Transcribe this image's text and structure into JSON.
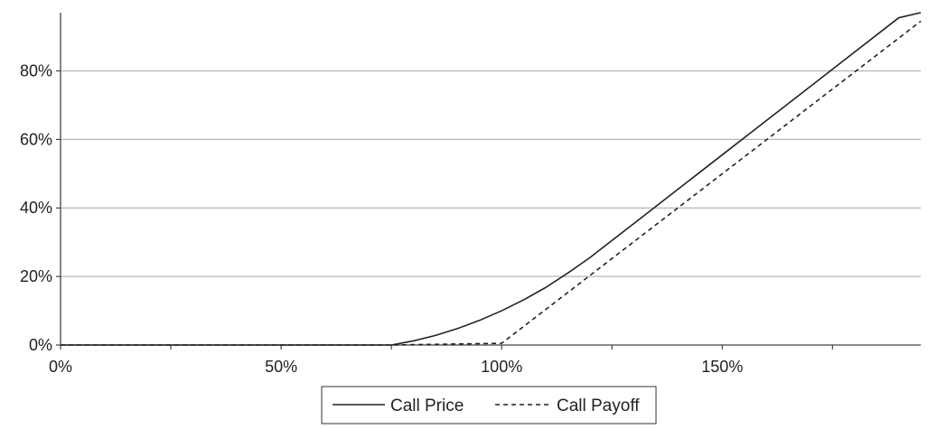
{
  "chart_data": {
    "type": "line",
    "title": "",
    "xlabel": "",
    "ylabel": "",
    "xlim": [
      0,
      195
    ],
    "ylim": [
      0,
      97
    ],
    "x_ticks": [
      0,
      25,
      50,
      75,
      100,
      125,
      150,
      175
    ],
    "x_tick_labels": [
      {
        "value": 0,
        "label": "0%"
      },
      {
        "value": 50,
        "label": "50%"
      },
      {
        "value": 100,
        "label": "100%"
      },
      {
        "value": 150,
        "label": "150%"
      }
    ],
    "y_ticks": [
      {
        "value": 0,
        "label": "0%"
      },
      {
        "value": 20,
        "label": "20%"
      },
      {
        "value": 40,
        "label": "40%"
      },
      {
        "value": 60,
        "label": "60%"
      },
      {
        "value": 80,
        "label": "80%"
      }
    ],
    "grid": "horizontal",
    "legend_position": "bottom-center",
    "series": [
      {
        "name": "Call Price",
        "style": "solid",
        "color": "#222222",
        "points": [
          [
            0,
            0
          ],
          [
            25,
            0
          ],
          [
            50,
            0
          ],
          [
            70,
            0
          ],
          [
            75,
            0
          ],
          [
            80,
            1.2
          ],
          [
            85,
            2.8
          ],
          [
            90,
            4.8
          ],
          [
            95,
            7.2
          ],
          [
            100,
            10
          ],
          [
            105,
            13.2
          ],
          [
            110,
            16.8
          ],
          [
            115,
            21
          ],
          [
            120,
            25.5
          ],
          [
            125,
            30.5
          ],
          [
            130,
            35.5
          ],
          [
            135,
            40.5
          ],
          [
            140,
            45.5
          ],
          [
            150,
            55.5
          ],
          [
            160,
            65.5
          ],
          [
            170,
            75.5
          ],
          [
            180,
            85.5
          ],
          [
            190,
            95.5
          ],
          [
            195,
            97
          ]
        ]
      },
      {
        "name": "Call Payoff",
        "style": "dashed",
        "color": "#222222",
        "points": [
          [
            0,
            0
          ],
          [
            75,
            0
          ],
          [
            100,
            0.5
          ],
          [
            195,
            94.5
          ]
        ]
      }
    ]
  }
}
